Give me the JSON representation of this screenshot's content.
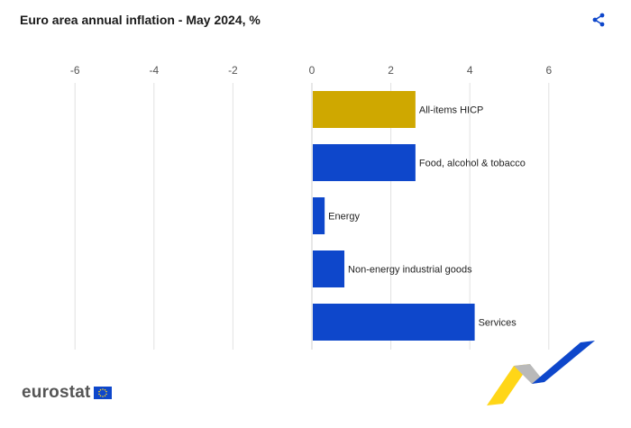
{
  "header": {
    "title": "Euro area annual inflation - May 2024, %"
  },
  "icons": {
    "share": "share-icon"
  },
  "footer": {
    "logo_text": "eurostat"
  },
  "colors": {
    "highlight": "#CFA800",
    "series": "#0E47CB",
    "grid": "#E2E2E2"
  },
  "chart_data": {
    "type": "bar",
    "orientation": "horizontal",
    "title": "Euro area annual inflation - May 2024, %",
    "categories": [
      "All-items HICP",
      "Food, alcohol & tobacco",
      "Energy",
      "Non-energy industrial goods",
      "Services"
    ],
    "values": [
      2.6,
      2.6,
      0.3,
      0.8,
      4.1
    ],
    "highlight_index": 0,
    "xlim": [
      -7,
      7
    ],
    "xticks": [
      -6,
      -4,
      -2,
      0,
      2,
      4,
      6
    ],
    "grid": true,
    "xlabel": "",
    "ylabel": ""
  }
}
